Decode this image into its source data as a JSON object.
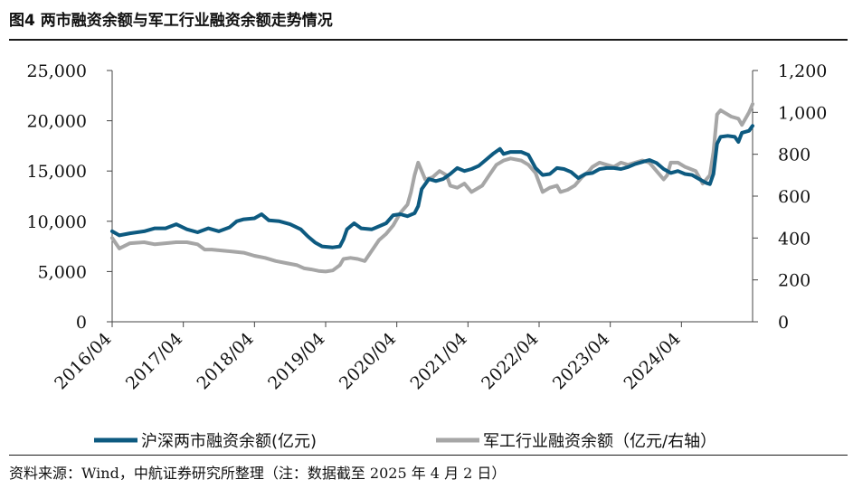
{
  "header": {
    "title": "图4  两市融资余额与军工行业融资余额走势情况"
  },
  "footer": {
    "source": "资料来源：Wind，中航证券研究所整理（注：数据截至 2025 年 4 月 2 日）"
  },
  "colors": {
    "series1": "#0d5a80",
    "series2": "#a6a6a6",
    "axis": "#444444"
  },
  "chart_data": {
    "type": "line",
    "title": "两市融资余额与军工行业融资余额走势情况",
    "x_range": [
      "2016/04",
      "2025/04"
    ],
    "x_ticks": [
      "2016/04",
      "2017/04",
      "2018/04",
      "2019/04",
      "2020/04",
      "2021/04",
      "2022/04",
      "2023/04",
      "2024/04"
    ],
    "y_left": {
      "ylim": [
        0,
        25000
      ],
      "ticks": [
        "0",
        "5,000",
        "10,000",
        "15,000",
        "20,000",
        "25,000"
      ],
      "tick_values": [
        0,
        5000,
        10000,
        15000,
        20000,
        25000
      ]
    },
    "y_right": {
      "ylim": [
        0,
        1200
      ],
      "ticks": [
        "0",
        "200",
        "400",
        "600",
        "800",
        "1,000",
        "1,200"
      ],
      "tick_values": [
        0,
        200,
        400,
        600,
        800,
        1000,
        1200
      ]
    },
    "legend": {
      "position": "bottom"
    },
    "series": [
      {
        "name": "沪深两市融资余额(亿元)",
        "axis": "left",
        "points": [
          [
            2016.25,
            9000
          ],
          [
            2016.35,
            8600
          ],
          [
            2016.5,
            8800
          ],
          [
            2016.7,
            9000
          ],
          [
            2016.85,
            9300
          ],
          [
            2017.0,
            9300
          ],
          [
            2017.15,
            9700
          ],
          [
            2017.3,
            9200
          ],
          [
            2017.45,
            8900
          ],
          [
            2017.6,
            9300
          ],
          [
            2017.75,
            9000
          ],
          [
            2017.9,
            9400
          ],
          [
            2018.0,
            10000
          ],
          [
            2018.1,
            10200
          ],
          [
            2018.25,
            10300
          ],
          [
            2018.35,
            10700
          ],
          [
            2018.45,
            10100
          ],
          [
            2018.6,
            10000
          ],
          [
            2018.75,
            9700
          ],
          [
            2018.9,
            9200
          ],
          [
            2019.0,
            8500
          ],
          [
            2019.1,
            7900
          ],
          [
            2019.2,
            7500
          ],
          [
            2019.35,
            7400
          ],
          [
            2019.45,
            7500
          ],
          [
            2019.5,
            8200
          ],
          [
            2019.55,
            9200
          ],
          [
            2019.65,
            9800
          ],
          [
            2019.75,
            9300
          ],
          [
            2019.9,
            9200
          ],
          [
            2020.0,
            9500
          ],
          [
            2020.1,
            9800
          ],
          [
            2020.2,
            10600
          ],
          [
            2020.3,
            10700
          ],
          [
            2020.4,
            10500
          ],
          [
            2020.5,
            10800
          ],
          [
            2020.55,
            11500
          ],
          [
            2020.6,
            13200
          ],
          [
            2020.7,
            14200
          ],
          [
            2020.8,
            14000
          ],
          [
            2020.9,
            14200
          ],
          [
            2021.0,
            14700
          ],
          [
            2021.1,
            15300
          ],
          [
            2021.2,
            15000
          ],
          [
            2021.3,
            15200
          ],
          [
            2021.4,
            15500
          ],
          [
            2021.5,
            16100
          ],
          [
            2021.6,
            16700
          ],
          [
            2021.7,
            17200
          ],
          [
            2021.75,
            16700
          ],
          [
            2021.85,
            16900
          ],
          [
            2022.0,
            16900
          ],
          [
            2022.1,
            16600
          ],
          [
            2022.2,
            15300
          ],
          [
            2022.3,
            14600
          ],
          [
            2022.4,
            14700
          ],
          [
            2022.5,
            15300
          ],
          [
            2022.6,
            15200
          ],
          [
            2022.7,
            14900
          ],
          [
            2022.8,
            14300
          ],
          [
            2022.9,
            14700
          ],
          [
            2023.0,
            14800
          ],
          [
            2023.1,
            15200
          ],
          [
            2023.2,
            15300
          ],
          [
            2023.3,
            15300
          ],
          [
            2023.4,
            15200
          ],
          [
            2023.5,
            15400
          ],
          [
            2023.6,
            15700
          ],
          [
            2023.7,
            15900
          ],
          [
            2023.8,
            16100
          ],
          [
            2023.9,
            15800
          ],
          [
            2024.0,
            15200
          ],
          [
            2024.1,
            14800
          ],
          [
            2024.2,
            15000
          ],
          [
            2024.3,
            14700
          ],
          [
            2024.4,
            14600
          ],
          [
            2024.5,
            14200
          ],
          [
            2024.6,
            13800
          ],
          [
            2024.65,
            13700
          ],
          [
            2024.7,
            14700
          ],
          [
            2024.75,
            17700
          ],
          [
            2024.8,
            18400
          ],
          [
            2024.9,
            18500
          ],
          [
            2025.0,
            18400
          ],
          [
            2025.05,
            17900
          ],
          [
            2025.1,
            18800
          ],
          [
            2025.2,
            19000
          ],
          [
            2025.25,
            19500
          ]
        ]
      },
      {
        "name": "军工行业融资余额（亿元/右轴）",
        "axis": "right",
        "points": [
          [
            2016.25,
            400
          ],
          [
            2016.35,
            350
          ],
          [
            2016.5,
            375
          ],
          [
            2016.7,
            380
          ],
          [
            2016.85,
            370
          ],
          [
            2017.0,
            375
          ],
          [
            2017.15,
            380
          ],
          [
            2017.3,
            380
          ],
          [
            2017.45,
            370
          ],
          [
            2017.55,
            345
          ],
          [
            2017.65,
            345
          ],
          [
            2017.8,
            340
          ],
          [
            2017.95,
            335
          ],
          [
            2018.1,
            330
          ],
          [
            2018.25,
            315
          ],
          [
            2018.4,
            305
          ],
          [
            2018.55,
            290
          ],
          [
            2018.7,
            280
          ],
          [
            2018.85,
            270
          ],
          [
            2018.95,
            255
          ],
          [
            2019.05,
            250
          ],
          [
            2019.15,
            243
          ],
          [
            2019.25,
            240
          ],
          [
            2019.35,
            245
          ],
          [
            2019.45,
            270
          ],
          [
            2019.5,
            300
          ],
          [
            2019.6,
            305
          ],
          [
            2019.7,
            300
          ],
          [
            2019.8,
            290
          ],
          [
            2019.9,
            340
          ],
          [
            2020.0,
            390
          ],
          [
            2020.1,
            420
          ],
          [
            2020.2,
            460
          ],
          [
            2020.3,
            520
          ],
          [
            2020.35,
            540
          ],
          [
            2020.4,
            560
          ],
          [
            2020.45,
            620
          ],
          [
            2020.5,
            700
          ],
          [
            2020.55,
            760
          ],
          [
            2020.6,
            720
          ],
          [
            2020.65,
            680
          ],
          [
            2020.75,
            690
          ],
          [
            2020.85,
            720
          ],
          [
            2020.95,
            700
          ],
          [
            2021.0,
            650
          ],
          [
            2021.1,
            640
          ],
          [
            2021.2,
            660
          ],
          [
            2021.3,
            620
          ],
          [
            2021.45,
            650
          ],
          [
            2021.55,
            700
          ],
          [
            2021.65,
            750
          ],
          [
            2021.75,
            770
          ],
          [
            2021.85,
            780
          ],
          [
            2022.0,
            770
          ],
          [
            2022.1,
            750
          ],
          [
            2022.2,
            710
          ],
          [
            2022.3,
            620
          ],
          [
            2022.4,
            640
          ],
          [
            2022.5,
            650
          ],
          [
            2022.55,
            620
          ],
          [
            2022.65,
            630
          ],
          [
            2022.75,
            650
          ],
          [
            2022.85,
            690
          ],
          [
            2022.95,
            720
          ],
          [
            2023.0,
            740
          ],
          [
            2023.1,
            760
          ],
          [
            2023.2,
            750
          ],
          [
            2023.3,
            740
          ],
          [
            2023.4,
            760
          ],
          [
            2023.5,
            750
          ],
          [
            2023.6,
            760
          ],
          [
            2023.7,
            770
          ],
          [
            2023.8,
            760
          ],
          [
            2023.9,
            720
          ],
          [
            2024.0,
            680
          ],
          [
            2024.05,
            700
          ],
          [
            2024.1,
            760
          ],
          [
            2024.2,
            760
          ],
          [
            2024.3,
            740
          ],
          [
            2024.45,
            720
          ],
          [
            2024.55,
            660
          ],
          [
            2024.65,
            700
          ],
          [
            2024.7,
            810
          ],
          [
            2024.75,
            990
          ],
          [
            2024.8,
            1010
          ],
          [
            2024.85,
            1000
          ],
          [
            2024.95,
            980
          ],
          [
            2025.05,
            970
          ],
          [
            2025.1,
            940
          ],
          [
            2025.15,
            970
          ],
          [
            2025.2,
            1000
          ],
          [
            2025.25,
            1040
          ]
        ]
      }
    ]
  }
}
